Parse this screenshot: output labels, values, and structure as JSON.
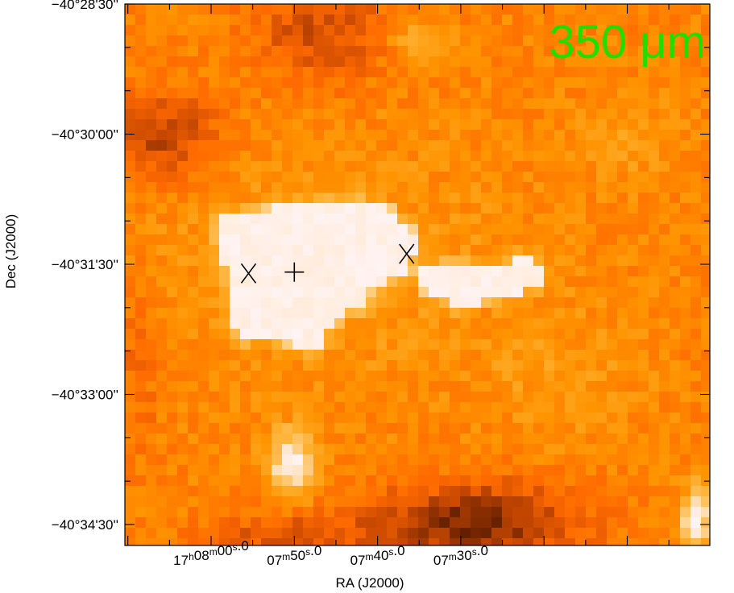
{
  "figure": {
    "band_label": "350 μm",
    "band_color": "#22dd00",
    "x_axis_title": "RA (J2000)",
    "y_axis_title": "Dec (J2000)",
    "colormap": [
      "#3a1200",
      "#8a2e00",
      "#cc4a00",
      "#ff6a00",
      "#ff9300",
      "#ffb030",
      "#ffd9a0",
      "#fff3f3"
    ],
    "x_ticks": [
      {
        "value": 0,
        "label_main": "17",
        "h": "h",
        "label_mid": "08",
        "m": "m",
        "label_sec": "00",
        "s": "s",
        "label_frac": ".0"
      },
      {
        "value": 10,
        "label_main": "07",
        "h": "",
        "label_mid": "",
        "m": "m",
        "label_sec": "50",
        "s": "s",
        "label_frac": ".0"
      },
      {
        "value": 20,
        "label_main": "07",
        "h": "",
        "label_mid": "",
        "m": "m",
        "label_sec": "40",
        "s": "s",
        "label_frac": ".0"
      },
      {
        "value": 30,
        "label_main": "07",
        "h": "",
        "label_mid": "",
        "m": "m",
        "label_sec": "30",
        "s": "s",
        "label_frac": ".0"
      }
    ],
    "y_ticks": [
      {
        "value": 0,
        "label": "−40°28'30''"
      },
      {
        "value": 1,
        "label": "−40°30'00''"
      },
      {
        "value": 2,
        "label": "−40°31'30''"
      },
      {
        "value": 3,
        "label": "−40°33'00''"
      },
      {
        "value": 4,
        "label": "−40°34'30''"
      }
    ],
    "markers": [
      {
        "symbol": "x",
        "ra_offset_s": 4.5,
        "dec_offset": 2.07
      },
      {
        "symbol": "+",
        "ra_offset_s": 10.0,
        "dec_offset": 2.06
      },
      {
        "symbol": "x",
        "ra_offset_s": 23.5,
        "dec_offset": 1.92
      }
    ]
  }
}
